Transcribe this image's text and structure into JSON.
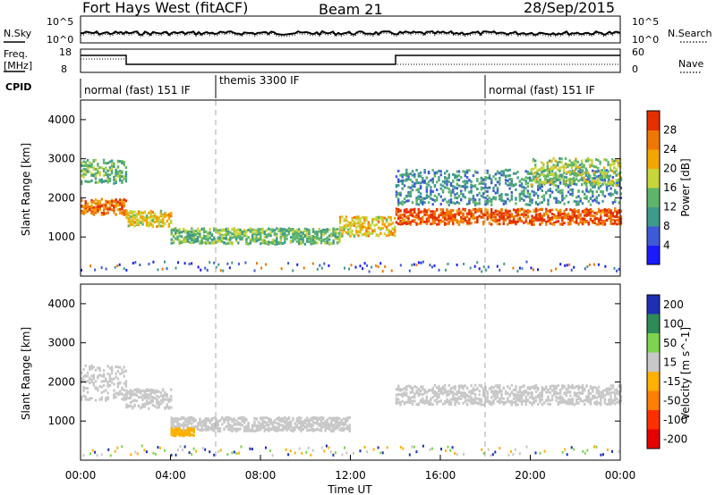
{
  "header": {
    "radar": "Fort Hays West (fitACF)",
    "beam": "Beam 21",
    "date": "28/Sep/2015"
  },
  "status_panels": {
    "nsky_label": "N.Sky",
    "nsky_ticks": [
      "10^5",
      "10^0"
    ],
    "nsearch_label": "N.Search",
    "nsearch_ticks": [
      "10^5",
      "10^0"
    ],
    "freq_label_1": "Freq.",
    "freq_label_2": "[MHz]",
    "freq_ticks": [
      "18",
      "8"
    ],
    "nave_label": "Nave",
    "nave_ticks": [
      "60",
      "0"
    ],
    "cpid_label": "CPID",
    "cpid_segments": [
      {
        "label": "normal (fast) 151 IF",
        "start_hour": 0,
        "end_hour": 6
      },
      {
        "label": "themis 3300 IF",
        "start_hour": 6,
        "end_hour": 18
      },
      {
        "label": "normal (fast) 151 IF",
        "start_hour": 18,
        "end_hour": 24
      }
    ]
  },
  "chart_data": [
    {
      "type": "heatmap",
      "quantity": "Power",
      "ylabel": "Slant Range [km]",
      "ylim": [
        0,
        4500
      ],
      "y_ticks": [
        "1000",
        "2000",
        "3000",
        "4000"
      ],
      "colorbar_label": "Power [dB]",
      "colorbar_range": [
        0,
        32
      ],
      "colorbar_ticks": [
        "4",
        "8",
        "12",
        "16",
        "20",
        "24",
        "28"
      ],
      "colors": [
        "#1a1aff",
        "#3d5bd6",
        "#3f9a8c",
        "#5eb56a",
        "#c7d43a",
        "#f2a600",
        "#f07800",
        "#e53000"
      ],
      "echo_regions": [
        {
          "t0": 0.0,
          "t1": 2.0,
          "r_center": 1800,
          "width": 400,
          "power": 26
        },
        {
          "t0": 0.0,
          "t1": 2.0,
          "r_center": 2700,
          "width": 600,
          "power": 14
        },
        {
          "t0": 2.0,
          "t1": 4.0,
          "r_center": 1500,
          "width": 400,
          "power": 20
        },
        {
          "t0": 4.0,
          "t1": 11.5,
          "r_center": 1050,
          "width": 400,
          "power": 14
        },
        {
          "t0": 11.5,
          "t1": 14.0,
          "r_center": 1300,
          "width": 500,
          "power": 20
        },
        {
          "t0": 14.0,
          "t1": 24.0,
          "r_center": 1550,
          "width": 400,
          "power": 28
        },
        {
          "t0": 14.0,
          "t1": 24.0,
          "r_center": 2300,
          "width": 900,
          "power": 10
        },
        {
          "t0": 20.0,
          "t1": 24.0,
          "r_center": 2700,
          "width": 700,
          "power": 16
        }
      ]
    },
    {
      "type": "heatmap",
      "quantity": "Velocity",
      "xlabel": "Time UT",
      "ylabel": "Slant Range [km]",
      "ylim": [
        0,
        4500
      ],
      "y_ticks": [
        "1000",
        "2000",
        "3000",
        "4000"
      ],
      "x_ticks": [
        "00:00",
        "04:00",
        "08:00",
        "12:00",
        "16:00",
        "20:00",
        "00:00"
      ],
      "xlim_hours": [
        0,
        24
      ],
      "colorbar_label": "Velocity [m s^-1]",
      "colorbar_ticks": [
        "200",
        "100",
        "50",
        "15",
        "-15",
        "-50",
        "-100",
        "-200"
      ],
      "colors": [
        "#1f2fb4",
        "#2e8b57",
        "#7fd44f",
        "#c8c8c8",
        "#ffb000",
        "#ff7f00",
        "#ff3000",
        "#e60000"
      ],
      "echo_regions": [
        {
          "t0": 0.0,
          "t1": 2.0,
          "r_center": 2000,
          "width": 900,
          "velocity": 0
        },
        {
          "t0": 2.0,
          "t1": 4.0,
          "r_center": 1600,
          "width": 500,
          "velocity": 0
        },
        {
          "t0": 4.0,
          "t1": 12.0,
          "r_center": 950,
          "width": 350,
          "velocity": 0
        },
        {
          "t0": 4.0,
          "t1": 5.0,
          "r_center": 750,
          "width": 200,
          "velocity": -40
        },
        {
          "t0": 14.0,
          "t1": 24.0,
          "r_center": 1700,
          "width": 500,
          "velocity": 0
        }
      ]
    }
  ]
}
